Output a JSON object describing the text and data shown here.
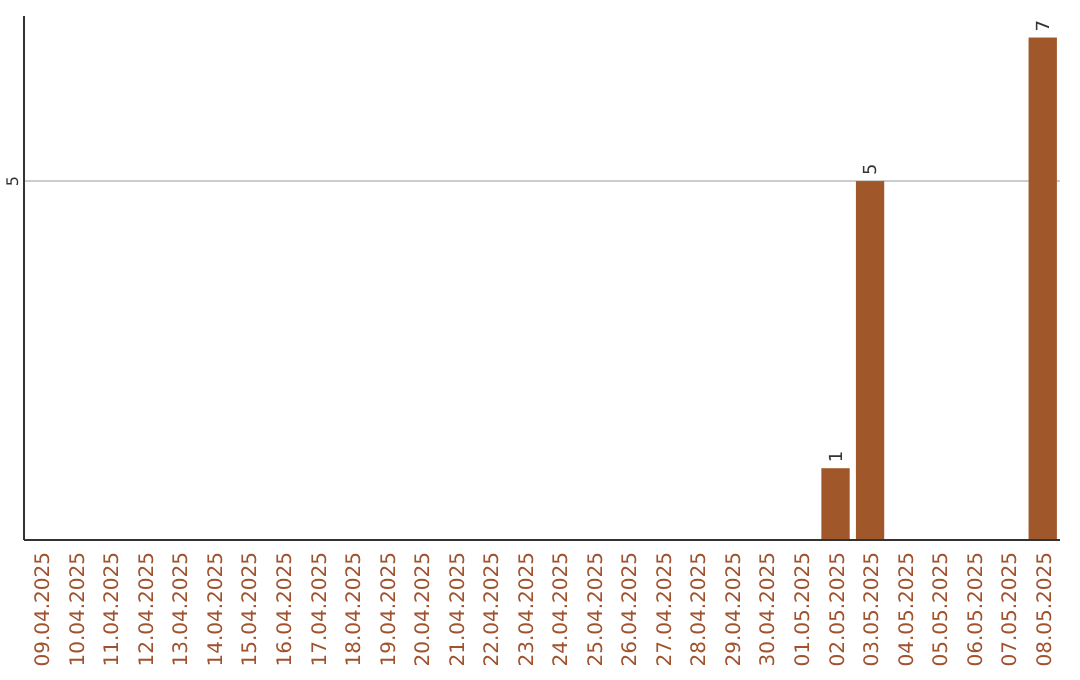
{
  "chart_data": {
    "type": "bar",
    "categories": [
      "09.04.2025",
      "10.04.2025",
      "11.04.2025",
      "12.04.2025",
      "13.04.2025",
      "14.04.2025",
      "15.04.2025",
      "16.04.2025",
      "17.04.2025",
      "18.04.2025",
      "19.04.2025",
      "20.04.2025",
      "21.04.2025",
      "22.04.2025",
      "23.04.2025",
      "24.04.2025",
      "25.04.2025",
      "26.04.2025",
      "27.04.2025",
      "28.04.2025",
      "29.04.2025",
      "30.04.2025",
      "01.05.2025",
      "02.05.2025",
      "03.05.2025",
      "04.05.2025",
      "05.05.2025",
      "06.05.2025",
      "07.05.2025",
      "08.05.2025"
    ],
    "values": [
      null,
      null,
      null,
      null,
      null,
      null,
      null,
      null,
      null,
      null,
      null,
      null,
      null,
      null,
      null,
      null,
      null,
      null,
      null,
      null,
      null,
      null,
      null,
      1,
      5,
      null,
      null,
      null,
      null,
      7
    ],
    "data_labels": true,
    "color": "#a0572a",
    "ylim": [
      0,
      7.3
    ],
    "yticks": [
      5
    ],
    "grid": "y",
    "legend": false
  }
}
